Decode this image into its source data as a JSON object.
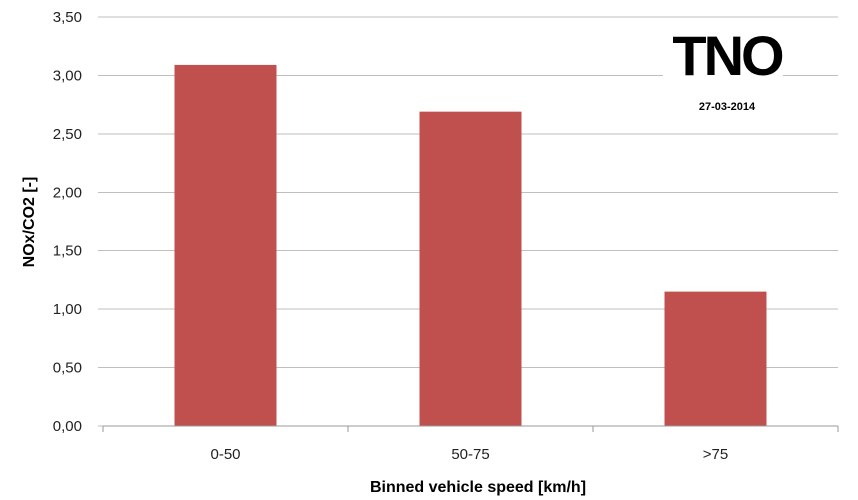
{
  "chart_data": {
    "type": "bar",
    "categories": [
      "0-50",
      "50-75",
      ">75"
    ],
    "values": [
      3.09,
      2.69,
      1.15
    ],
    "xlabel": "Binned vehicle speed [km/h]",
    "ylabel": "NOx/CO2 [-]",
    "ylim": [
      0,
      3.5
    ],
    "yticks": [
      "0,00",
      "0,50",
      "1,00",
      "1,50",
      "2,00",
      "2,50",
      "3,00",
      "3,50"
    ],
    "grid": true,
    "bar_color": "#c0504d",
    "grid_color": "#bfbfbf"
  },
  "logo": {
    "text": "TNO"
  },
  "annotation": {
    "date": "27-03-2014"
  }
}
